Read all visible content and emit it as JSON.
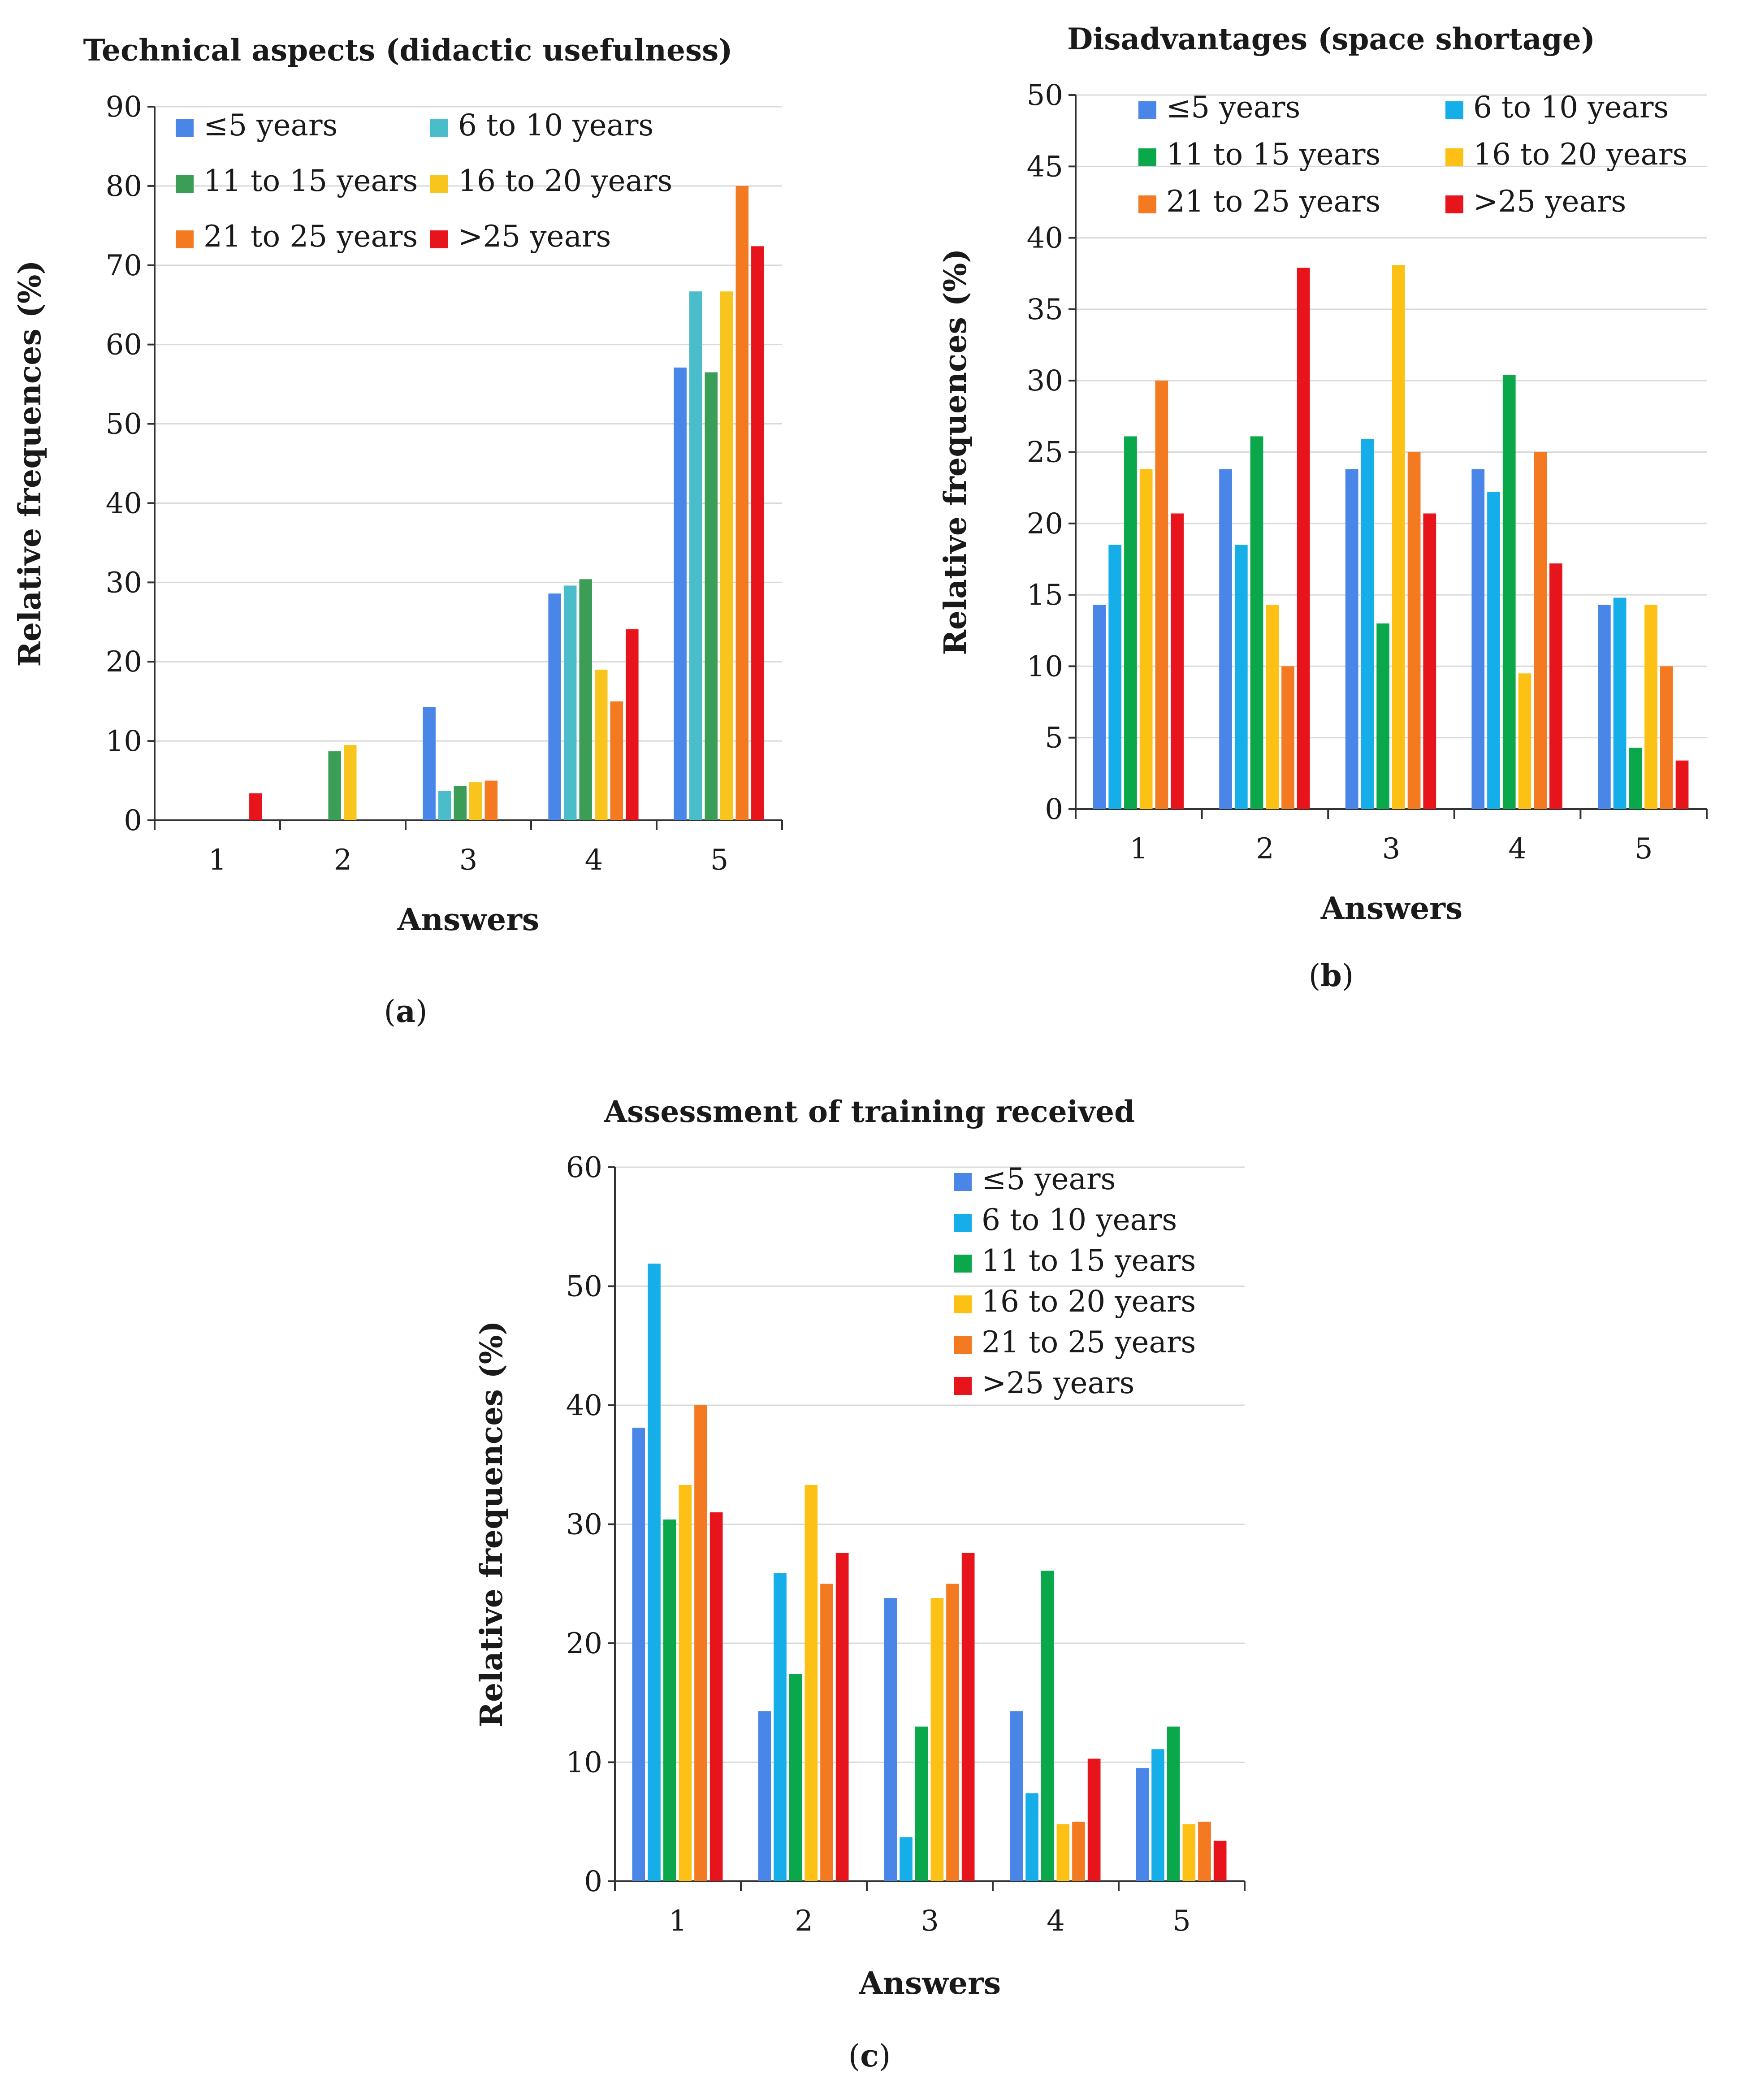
{
  "series_names": [
    "≤5 years",
    "6 to 10 years",
    "11 to 15 years",
    "16 to 20 years",
    "21 to 25 years",
    ">25 years"
  ],
  "chart_data": [
    {
      "id": "a",
      "type": "bar",
      "title": "Technical aspects (didactic usefulness)",
      "xlabel": "Answers",
      "ylabel": "Relative frequences (%)",
      "caption_letter": "a",
      "categories": [
        "1",
        "2",
        "3",
        "4",
        "5"
      ],
      "ylim": [
        0,
        90
      ],
      "yticks": [
        0,
        10,
        20,
        30,
        40,
        50,
        60,
        70,
        80,
        90
      ],
      "grid": true,
      "legend_position": "top-left",
      "colors": [
        "#4a86e8",
        "#4bbcc9",
        "#3c9e56",
        "#f7c51e",
        "#f47a22",
        "#e8141b"
      ],
      "series": [
        {
          "name": "≤5 years",
          "values": [
            0,
            0,
            14.3,
            28.6,
            57.1
          ]
        },
        {
          "name": "6 to 10 years",
          "values": [
            0,
            0,
            3.7,
            29.6,
            66.7
          ]
        },
        {
          "name": "11 to 15 years",
          "values": [
            0,
            8.7,
            4.3,
            30.4,
            56.5
          ]
        },
        {
          "name": "16 to 20 years",
          "values": [
            0,
            9.5,
            4.8,
            19.0,
            66.7
          ]
        },
        {
          "name": "21 to 25 years",
          "values": [
            0,
            0,
            5.0,
            15.0,
            80.0
          ]
        },
        {
          "name": ">25 years",
          "values": [
            3.4,
            0,
            0,
            24.1,
            72.4
          ]
        }
      ]
    },
    {
      "id": "b",
      "type": "bar",
      "title": "Disadvantages (space shortage)",
      "xlabel": "Answers",
      "ylabel": "Relative frequences (%)",
      "caption_letter": "b",
      "categories": [
        "1",
        "2",
        "3",
        "4",
        "5"
      ],
      "ylim": [
        0,
        50
      ],
      "yticks": [
        0,
        5,
        10,
        15,
        20,
        25,
        30,
        35,
        40,
        45,
        50
      ],
      "grid": true,
      "legend_position": "top",
      "colors": [
        "#4a86e8",
        "#16aee8",
        "#0aa84a",
        "#fcc114",
        "#f47a22",
        "#e8141b"
      ],
      "series": [
        {
          "name": "≤5 years",
          "values": [
            14.3,
            23.8,
            23.8,
            23.8,
            14.3
          ]
        },
        {
          "name": "6 to 10 years",
          "values": [
            18.5,
            18.5,
            25.9,
            22.2,
            14.8
          ]
        },
        {
          "name": "11 to 15 years",
          "values": [
            26.1,
            26.1,
            13.0,
            30.4,
            4.3
          ]
        },
        {
          "name": "16 to 20 years",
          "values": [
            23.8,
            14.3,
            38.1,
            9.5,
            14.3
          ]
        },
        {
          "name": "21 to 25 years",
          "values": [
            30.0,
            10.0,
            25.0,
            25.0,
            10.0
          ]
        },
        {
          "name": ">25 years",
          "values": [
            20.7,
            37.9,
            20.7,
            17.2,
            3.4
          ]
        }
      ]
    },
    {
      "id": "c",
      "type": "bar",
      "title": "Assessment of training received",
      "xlabel": "Answers",
      "ylabel": "Relative frequences (%)",
      "caption_letter": "c",
      "categories": [
        "1",
        "2",
        "3",
        "4",
        "5"
      ],
      "ylim": [
        0,
        60
      ],
      "yticks": [
        0,
        10,
        20,
        30,
        40,
        50,
        60
      ],
      "grid": true,
      "legend_position": "top-right",
      "colors": [
        "#4a86e8",
        "#16aee8",
        "#0aa84a",
        "#fcc114",
        "#f47a22",
        "#e8141b"
      ],
      "series": [
        {
          "name": "≤5 years",
          "values": [
            38.1,
            14.3,
            23.8,
            14.3,
            9.5
          ]
        },
        {
          "name": "6 to 10 years",
          "values": [
            51.9,
            25.9,
            3.7,
            7.4,
            11.1
          ]
        },
        {
          "name": "11 to 15 years",
          "values": [
            30.4,
            17.4,
            13.0,
            26.1,
            13.0
          ]
        },
        {
          "name": "16 to 20 years",
          "values": [
            33.3,
            33.3,
            23.8,
            4.8,
            4.8
          ]
        },
        {
          "name": "21 to 25 years",
          "values": [
            40.0,
            25.0,
            25.0,
            5.0,
            5.0
          ]
        },
        {
          "name": ">25 years",
          "values": [
            31.0,
            27.6,
            27.6,
            10.3,
            3.4
          ]
        }
      ]
    }
  ]
}
